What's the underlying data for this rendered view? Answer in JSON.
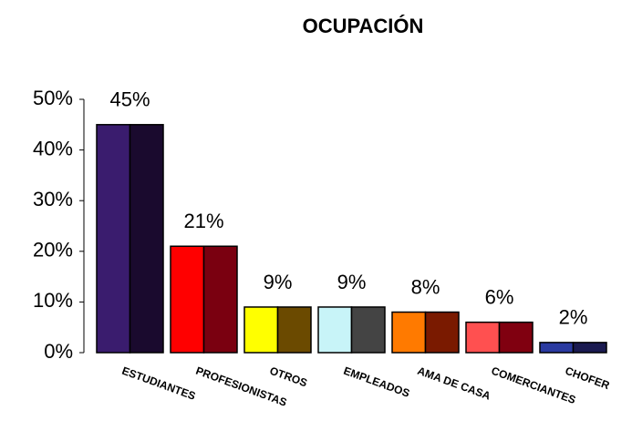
{
  "chart_data": {
    "type": "bar",
    "title": "OCUPACIÓN",
    "categories": [
      "ESTUDIANTES",
      "PROFESIONISTAS",
      "OTROS",
      "EMPLEADOS",
      "AMA DE CASA",
      "COMERCIANTES",
      "CHOFER"
    ],
    "values": [
      45,
      21,
      9,
      9,
      8,
      6,
      2
    ],
    "value_labels": [
      "45%",
      "21%",
      "9%",
      "9%",
      "8%",
      "6%",
      "2%"
    ],
    "colors": [
      "#3a1c6e",
      "#ff0000",
      "#ffff00",
      "#c8f4f8",
      "#ff7a00",
      "#ff5050",
      "#2a3aa0"
    ],
    "side_colors": [
      "#1a0a2e",
      "#7a0010",
      "#6b4a00",
      "#444444",
      "#7a1a00",
      "#800010",
      "#1a1a50"
    ],
    "ylim": [
      0,
      50
    ],
    "yticks": [
      {
        "value": 0,
        "label": "0%"
      },
      {
        "value": 10,
        "label": "10%"
      },
      {
        "value": 20,
        "label": "20%"
      },
      {
        "value": 30,
        "label": "30%"
      },
      {
        "value": 40,
        "label": "40%"
      },
      {
        "value": 50,
        "label": "50%"
      }
    ],
    "grid": false
  }
}
